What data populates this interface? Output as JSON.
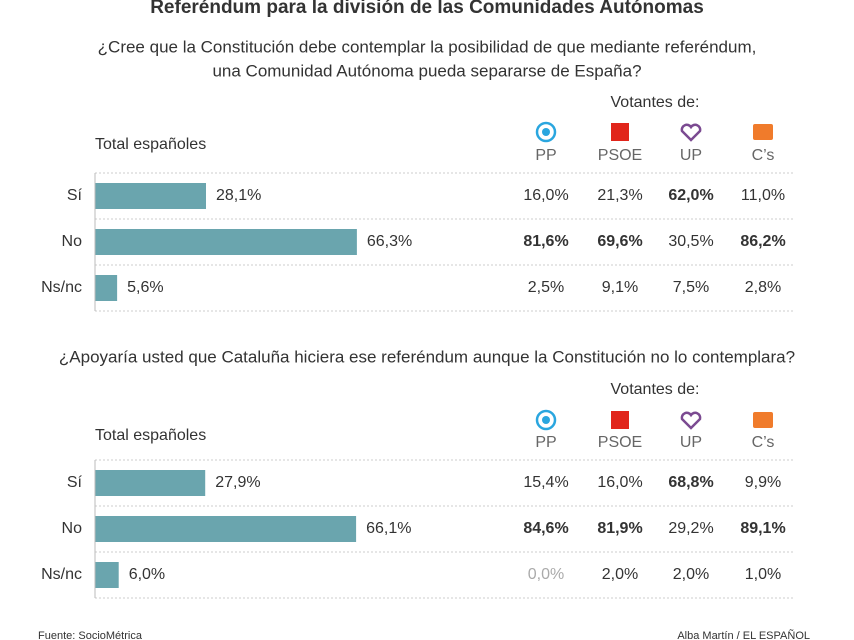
{
  "title": "Referéndum para la división de las Comunidades Autónomas",
  "sections": [
    {
      "question_lines": [
        "¿Cree que la Constitución debe contemplar la posibilidad de que mediante referéndum,",
        "una Comunidad Autónoma pueda separarse de España?"
      ],
      "voters_label": "Votantes de:",
      "total_label": "Total españoles",
      "categories": [
        "Sí",
        "No",
        "Ns/nc"
      ],
      "values": [
        28.1,
        66.3,
        5.6
      ],
      "value_labels": [
        "28,1%",
        "66,3%",
        "5,6%"
      ],
      "parties": [
        {
          "name": "PP",
          "values": [
            16.0,
            81.6,
            2.5
          ],
          "value_labels": [
            "16,0%",
            "81,6%",
            "2,5%"
          ]
        },
        {
          "name": "PSOE",
          "values": [
            21.3,
            69.6,
            9.1
          ],
          "value_labels": [
            "21,3%",
            "69,6%",
            "9,1%"
          ]
        },
        {
          "name": "UP",
          "values": [
            62.0,
            30.5,
            7.5
          ],
          "value_labels": [
            "62,0%",
            "30,5%",
            "7,5%"
          ]
        },
        {
          "name": "C’s",
          "values": [
            11.0,
            86.2,
            2.8
          ],
          "value_labels": [
            "11,0%",
            "86,2%",
            "2,8%"
          ]
        }
      ]
    },
    {
      "question_lines": [
        "¿Apoyaría usted que Cataluña hiciera ese referéndum aunque la Constitución no lo contemplara?"
      ],
      "voters_label": "Votantes de:",
      "total_label": "Total españoles",
      "categories": [
        "Sí",
        "No",
        "Ns/nc"
      ],
      "values": [
        27.9,
        66.1,
        6.0
      ],
      "value_labels": [
        "27,9%",
        "66,1%",
        "6,0%"
      ],
      "parties": [
        {
          "name": "PP",
          "values": [
            15.4,
            84.6,
            0.0
          ],
          "value_labels": [
            "15,4%",
            "84,6%",
            "0,0%"
          ]
        },
        {
          "name": "PSOE",
          "values": [
            16.0,
            81.9,
            2.0
          ],
          "value_labels": [
            "16,0%",
            "81,9%",
            "2,0%"
          ]
        },
        {
          "name": "UP",
          "values": [
            68.8,
            29.2,
            2.0
          ],
          "value_labels": [
            "68,8%",
            "29,2%",
            "2,0%"
          ]
        },
        {
          "name": "C’s",
          "values": [
            9.9,
            89.1,
            1.0
          ],
          "value_labels": [
            "9,9%",
            "89,1%",
            "1,0%"
          ]
        }
      ]
    }
  ],
  "source": "Fuente: SocioMétrica",
  "credit": "Alba Martín / EL ESPAÑOL"
}
